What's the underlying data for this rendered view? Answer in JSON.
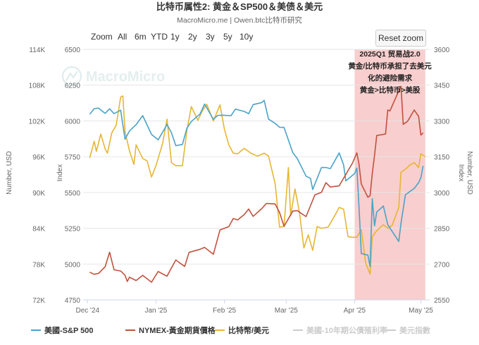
{
  "title": "比特币属性2: 黄金＆SP500＆美债＆美元",
  "subtitle": "MacroMicro.me | Owen.btc比特币研究",
  "watermark": "MacroMicro",
  "zoom": {
    "label": "Zoom",
    "buttons": [
      "All",
      "6m",
      "YTD",
      "1y",
      "2y",
      "3y",
      "5y",
      "10y"
    ],
    "reset_label": "Reset zoom"
  },
  "colors": {
    "sp500": "#4aa3c8",
    "gold": "#c0523e",
    "btc": "#e6b632",
    "treasury": "#cccccc",
    "dollar": "#cccccc",
    "highlight": "#f7c9c9"
  },
  "annotation": {
    "lines": [
      "2025Q1 贸易战2.0",
      "黄金/比特币承担了去美元",
      "化的避险需求",
      "黄金>比特币>美股"
    ]
  },
  "chart_data": {
    "type": "line",
    "x_ticks": [
      "Dec '24",
      "Jan '25",
      "Feb '25",
      "Mar '25",
      "Apr '25",
      "May '25"
    ],
    "axes": {
      "left_outer": {
        "label": "Number, USD",
        "ticks": [
          "72K",
          "78K",
          "84K",
          "90K",
          "96K",
          "102K",
          "108K",
          "114K"
        ],
        "range": [
          72000,
          114000
        ]
      },
      "left_inner": {
        "label": "Index",
        "ticks": [
          "4750",
          "5000",
          "5250",
          "5500",
          "5750",
          "6000",
          "6250",
          "6500"
        ],
        "range": [
          4750,
          6500
        ]
      },
      "right_inner": {
        "label": "Index",
        "ticks": [
          "2550",
          "2700",
          "2850",
          "3000",
          "3150",
          "3300",
          "3450",
          "3600"
        ],
        "range": [
          2550,
          3600
        ]
      },
      "right_outer": {
        "label": "Number, USD",
        "range": [
          72000,
          114000
        ]
      }
    },
    "highlight": {
      "from": "2025-04-01",
      "to": "2025-05-03"
    },
    "series": [
      {
        "name": "美國-S&P 500",
        "axis": "left_inner",
        "visible": true,
        "points": [
          [
            "2024-12-02",
            6047
          ],
          [
            "2024-12-04",
            6086
          ],
          [
            "2024-12-06",
            6090
          ],
          [
            "2024-12-09",
            6053
          ],
          [
            "2024-12-11",
            6085
          ],
          [
            "2024-12-13",
            6051
          ],
          [
            "2024-12-16",
            6075
          ],
          [
            "2024-12-18",
            5872
          ],
          [
            "2024-12-20",
            5930
          ],
          [
            "2024-12-23",
            5974
          ],
          [
            "2024-12-26",
            6037
          ],
          [
            "2024-12-30",
            5906
          ],
          [
            "2025-01-02",
            5868
          ],
          [
            "2025-01-06",
            5975
          ],
          [
            "2025-01-08",
            5918
          ],
          [
            "2025-01-10",
            5827
          ],
          [
            "2025-01-13",
            5836
          ],
          [
            "2025-01-15",
            5949
          ],
          [
            "2025-01-17",
            5996
          ],
          [
            "2025-01-21",
            6049
          ],
          [
            "2025-01-23",
            6118
          ],
          [
            "2025-01-27",
            6012
          ],
          [
            "2025-01-29",
            6039
          ],
          [
            "2025-01-31",
            6040
          ],
          [
            "2025-02-04",
            6037
          ],
          [
            "2025-02-06",
            6083
          ],
          [
            "2025-02-10",
            6066
          ],
          [
            "2025-02-12",
            6051
          ],
          [
            "2025-02-14",
            6114
          ],
          [
            "2025-02-18",
            6129
          ],
          [
            "2025-02-19",
            6144
          ],
          [
            "2025-02-21",
            6013
          ],
          [
            "2025-02-24",
            5983
          ],
          [
            "2025-02-26",
            5956
          ],
          [
            "2025-02-28",
            5955
          ],
          [
            "2025-03-04",
            5778
          ],
          [
            "2025-03-06",
            5738
          ],
          [
            "2025-03-10",
            5614
          ],
          [
            "2025-03-12",
            5599
          ],
          [
            "2025-03-13",
            5521
          ],
          [
            "2025-03-17",
            5675
          ],
          [
            "2025-03-19",
            5675
          ],
          [
            "2025-03-21",
            5667
          ],
          [
            "2025-03-25",
            5777
          ],
          [
            "2025-03-27",
            5693
          ],
          [
            "2025-03-28",
            5581
          ],
          [
            "2025-04-01",
            5633
          ],
          [
            "2025-04-02",
            5671
          ],
          [
            "2025-04-03",
            5397
          ],
          [
            "2025-04-04",
            5074
          ],
          [
            "2025-04-07",
            5062
          ],
          [
            "2025-04-08",
            4982
          ],
          [
            "2025-04-09",
            5457
          ],
          [
            "2025-04-10",
            5268
          ],
          [
            "2025-04-11",
            5363
          ],
          [
            "2025-04-14",
            5406
          ],
          [
            "2025-04-16",
            5275
          ],
          [
            "2025-04-21",
            5158
          ],
          [
            "2025-04-22",
            5287
          ],
          [
            "2025-04-24",
            5484
          ],
          [
            "2025-04-28",
            5529
          ],
          [
            "2025-04-30",
            5569
          ],
          [
            "2025-05-01",
            5604
          ],
          [
            "2025-05-02",
            5686
          ]
        ]
      },
      {
        "name": "NYMEX-黃金期貨價格",
        "axis": "right_inner",
        "visible": true,
        "points": [
          [
            "2024-12-02",
            2666
          ],
          [
            "2024-12-04",
            2657
          ],
          [
            "2024-12-06",
            2661
          ],
          [
            "2024-12-09",
            2689
          ],
          [
            "2024-12-11",
            2750
          ],
          [
            "2024-12-13",
            2676
          ],
          [
            "2024-12-16",
            2671
          ],
          [
            "2024-12-18",
            2653
          ],
          [
            "2024-12-19",
            2627
          ],
          [
            "2024-12-20",
            2645
          ],
          [
            "2024-12-23",
            2631
          ],
          [
            "2024-12-26",
            2653
          ],
          [
            "2024-12-30",
            2624
          ],
          [
            "2025-01-02",
            2669
          ],
          [
            "2025-01-06",
            2649
          ],
          [
            "2025-01-08",
            2684
          ],
          [
            "2025-01-10",
            2717
          ],
          [
            "2025-01-14",
            2690
          ],
          [
            "2025-01-16",
            2749
          ],
          [
            "2025-01-21",
            2762
          ],
          [
            "2025-01-23",
            2770
          ],
          [
            "2025-01-27",
            2741
          ],
          [
            "2025-01-30",
            2843
          ],
          [
            "2025-02-03",
            2857
          ],
          [
            "2025-02-05",
            2891
          ],
          [
            "2025-02-07",
            2885
          ],
          [
            "2025-02-10",
            2908
          ],
          [
            "2025-02-12",
            2931
          ],
          [
            "2025-02-14",
            2900
          ],
          [
            "2025-02-18",
            2933
          ],
          [
            "2025-02-20",
            2954
          ],
          [
            "2025-02-24",
            2952
          ],
          [
            "2025-02-26",
            2916
          ],
          [
            "2025-02-28",
            2858
          ],
          [
            "2025-03-04",
            2922
          ],
          [
            "2025-03-06",
            2924
          ],
          [
            "2025-03-10",
            2899
          ],
          [
            "2025-03-12",
            2945
          ],
          [
            "2025-03-14",
            2990
          ],
          [
            "2025-03-17",
            3001
          ],
          [
            "2025-03-19",
            3041
          ],
          [
            "2025-03-21",
            3023
          ],
          [
            "2025-03-25",
            3028
          ],
          [
            "2025-03-27",
            3060
          ],
          [
            "2025-03-31",
            3123
          ],
          [
            "2025-04-02",
            3166
          ],
          [
            "2025-04-03",
            3118
          ],
          [
            "2025-04-04",
            3036
          ],
          [
            "2025-04-07",
            2980
          ],
          [
            "2025-04-08",
            2987
          ],
          [
            "2025-04-09",
            3079
          ],
          [
            "2025-04-10",
            3156
          ],
          [
            "2025-04-11",
            3239
          ],
          [
            "2025-04-15",
            3245
          ],
          [
            "2025-04-16",
            3346
          ],
          [
            "2025-04-17",
            3342
          ],
          [
            "2025-04-21",
            3426
          ],
          [
            "2025-04-22",
            3445
          ],
          [
            "2025-04-23",
            3286
          ],
          [
            "2025-04-25",
            3299
          ],
          [
            "2025-04-28",
            3346
          ],
          [
            "2025-04-30",
            3319
          ],
          [
            "2025-05-01",
            3241
          ],
          [
            "2025-05-02",
            3250
          ]
        ]
      },
      {
        "name": "比特幣/美元",
        "axis": "left_outer",
        "visible": true,
        "points": [
          [
            "2024-12-02",
            95800
          ],
          [
            "2024-12-04",
            98600
          ],
          [
            "2024-12-05",
            96900
          ],
          [
            "2024-12-07",
            99800
          ],
          [
            "2024-12-09",
            97300
          ],
          [
            "2024-12-10",
            96600
          ],
          [
            "2024-12-12",
            100000
          ],
          [
            "2024-12-14",
            101300
          ],
          [
            "2024-12-16",
            106000
          ],
          [
            "2024-12-17",
            106200
          ],
          [
            "2024-12-18",
            100200
          ],
          [
            "2024-12-20",
            97000
          ],
          [
            "2024-12-22",
            94700
          ],
          [
            "2024-12-23",
            98000
          ],
          [
            "2024-12-26",
            95700
          ],
          [
            "2024-12-28",
            95300
          ],
          [
            "2024-12-30",
            92600
          ],
          [
            "2025-01-01",
            94500
          ],
          [
            "2025-01-04",
            98200
          ],
          [
            "2025-01-06",
            102300
          ],
          [
            "2025-01-08",
            95000
          ],
          [
            "2025-01-10",
            94500
          ],
          [
            "2025-01-13",
            94500
          ],
          [
            "2025-01-15",
            100400
          ],
          [
            "2025-01-17",
            104400
          ],
          [
            "2025-01-20",
            102100
          ],
          [
            "2025-01-22",
            103700
          ],
          [
            "2025-01-24",
            104800
          ],
          [
            "2025-01-27",
            102000
          ],
          [
            "2025-01-30",
            104700
          ],
          [
            "2025-02-01",
            100600
          ],
          [
            "2025-02-03",
            98000
          ],
          [
            "2025-02-05",
            96600
          ],
          [
            "2025-02-07",
            96500
          ],
          [
            "2025-02-10",
            97400
          ],
          [
            "2025-02-13",
            96600
          ],
          [
            "2025-02-16",
            96100
          ],
          [
            "2025-02-19",
            96600
          ],
          [
            "2025-02-21",
            96100
          ],
          [
            "2025-02-24",
            91500
          ],
          [
            "2025-02-26",
            84200
          ],
          [
            "2025-02-28",
            84300
          ],
          [
            "2025-03-02",
            94200
          ],
          [
            "2025-03-03",
            86100
          ],
          [
            "2025-03-05",
            90600
          ],
          [
            "2025-03-07",
            86700
          ],
          [
            "2025-03-09",
            80700
          ],
          [
            "2025-03-11",
            82900
          ],
          [
            "2025-03-13",
            80300
          ],
          [
            "2025-03-15",
            84300
          ],
          [
            "2025-03-17",
            84000
          ],
          [
            "2025-03-20",
            84200
          ],
          [
            "2025-03-23",
            86100
          ],
          [
            "2025-03-25",
            87500
          ],
          [
            "2025-03-27",
            87200
          ],
          [
            "2025-03-29",
            82600
          ],
          [
            "2025-03-31",
            82500
          ],
          [
            "2025-04-02",
            82500
          ],
          [
            "2025-04-04",
            83800
          ],
          [
            "2025-04-06",
            78200
          ],
          [
            "2025-04-08",
            76300
          ],
          [
            "2025-04-09",
            82600
          ],
          [
            "2025-04-11",
            83600
          ],
          [
            "2025-04-14",
            84600
          ],
          [
            "2025-04-16",
            84000
          ],
          [
            "2025-04-18",
            84500
          ],
          [
            "2025-04-21",
            87500
          ],
          [
            "2025-04-22",
            93400
          ],
          [
            "2025-04-24",
            93900
          ],
          [
            "2025-04-26",
            94600
          ],
          [
            "2025-04-28",
            95000
          ],
          [
            "2025-04-30",
            94200
          ],
          [
            "2025-05-01",
            96500
          ],
          [
            "2025-05-03",
            96000
          ]
        ]
      },
      {
        "name": "美國-10年期公債殖利率",
        "axis": "none",
        "visible": false,
        "points": []
      },
      {
        "name": "美元指數",
        "axis": "none",
        "visible": false,
        "points": []
      }
    ]
  }
}
